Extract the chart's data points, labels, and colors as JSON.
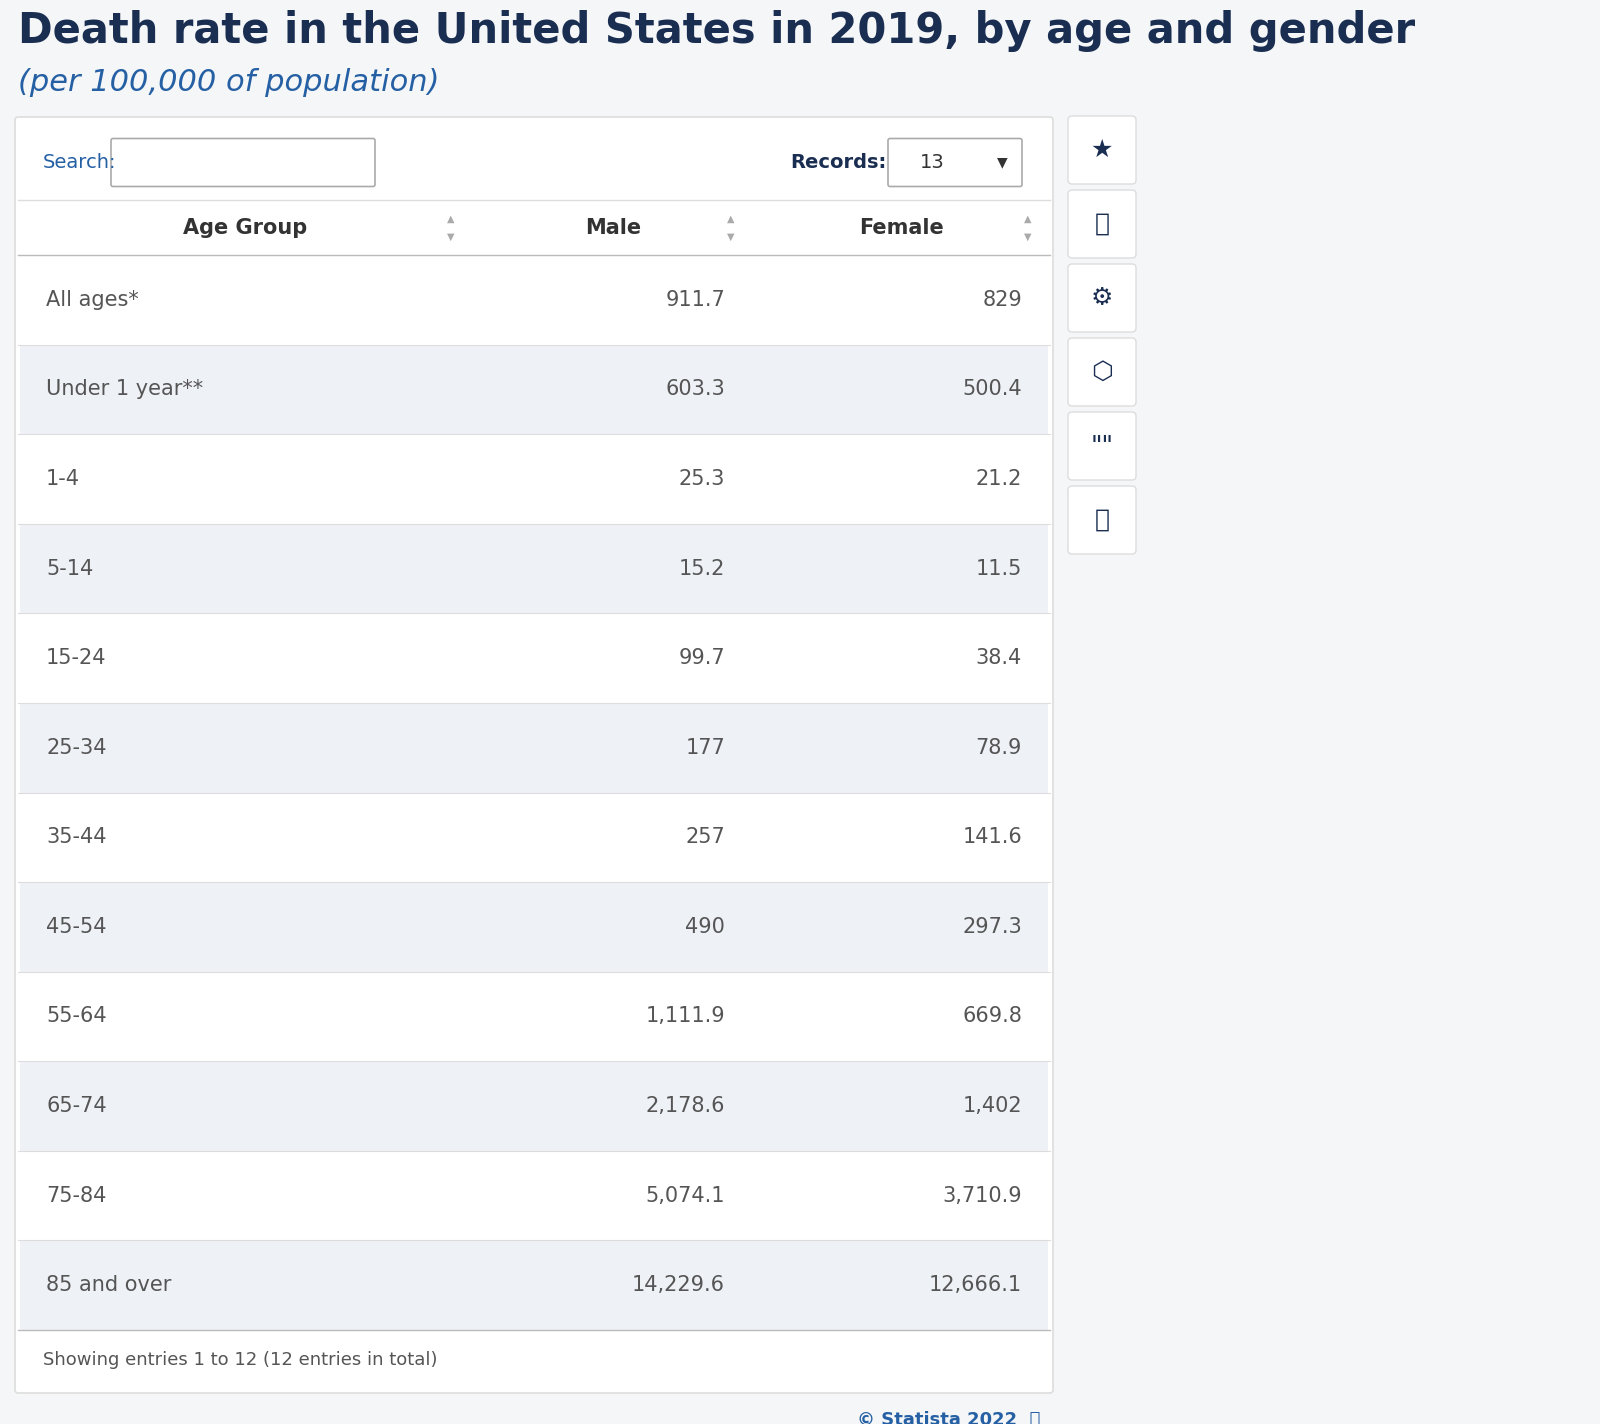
{
  "title": "Death rate in the United States in 2019, by age and gender",
  "subtitle": "(per 100,000 of population)",
  "title_color": "#1a2e52",
  "subtitle_color": "#2660a4",
  "background_color": "#f5f6f7",
  "table_outer_bg": "#ffffff",
  "table_border_color": "#dddddd",
  "row_alt_bg": "#eef1f6",
  "row_bg": "#ffffff",
  "header_text_color": "#333333",
  "cell_text_color": "#555555",
  "search_label_color": "#2660a4",
  "records_label_color": "#1a2e52",
  "statista_color": "#2660a4",
  "sort_arrow_color": "#aaaaaa",
  "columns": [
    "Age Group",
    "Male",
    "Female"
  ],
  "rows": [
    [
      "All ages*",
      "911.7",
      "829"
    ],
    [
      "Under 1 year**",
      "603.3",
      "500.4"
    ],
    [
      "1-4",
      "25.3",
      "21.2"
    ],
    [
      "5-14",
      "15.2",
      "11.5"
    ],
    [
      "15-24",
      "99.7",
      "38.4"
    ],
    [
      "25-34",
      "177",
      "78.9"
    ],
    [
      "35-44",
      "257",
      "141.6"
    ],
    [
      "45-54",
      "490",
      "297.3"
    ],
    [
      "55-64",
      "1,111.9",
      "669.8"
    ],
    [
      "65-74",
      "2,178.6",
      "1,402"
    ],
    [
      "75-84",
      "5,074.1",
      "3,710.9"
    ],
    [
      "85 and over",
      "14,229.6",
      "12,666.1"
    ]
  ],
  "footer_text": "Showing entries 1 to 12 (12 entries in total)",
  "footer_color": "#555555",
  "records_value": "13",
  "title_fontsize": 30,
  "subtitle_fontsize": 22,
  "header_fontsize": 15,
  "cell_fontsize": 15,
  "search_fontsize": 14,
  "footer_fontsize": 13,
  "statista_fontsize": 13
}
